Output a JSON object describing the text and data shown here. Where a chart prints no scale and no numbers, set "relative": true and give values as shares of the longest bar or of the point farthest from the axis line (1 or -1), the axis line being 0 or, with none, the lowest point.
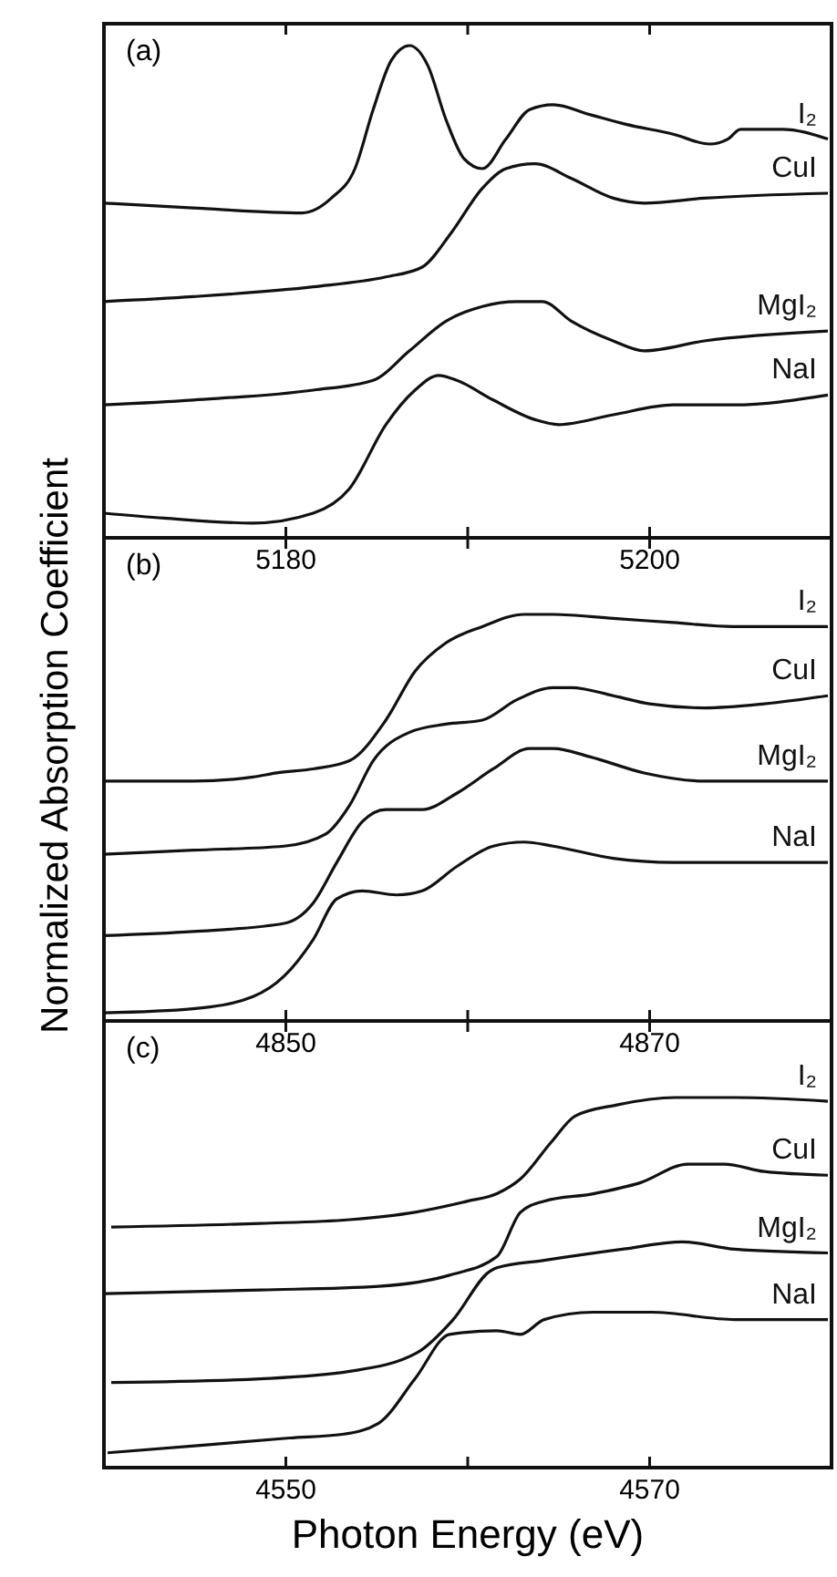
{
  "chart_data": [
    {
      "type": "line",
      "title": "(a)",
      "relative": true,
      "xlim": [
        5170,
        5210
      ],
      "xticks": [
        5180,
        {
          "value": 5190,
          "label": null
        },
        5200
      ],
      "legend": false,
      "marker": "none",
      "line_style": "solid",
      "series": [
        {
          "name": "I₂",
          "color": "#111111",
          "x": [
            5170.0,
            5174.9,
            5180.9,
            5182.5,
            5183.8,
            5184.8,
            5185.8,
            5186.8,
            5187.8,
            5188.8,
            5189.8,
            5190.8,
            5192.1,
            5193.4,
            5194.7,
            5196.7,
            5198.7,
            5201.3,
            5203.3,
            5204.3,
            5205.0,
            5207.3,
            5209.8
          ],
          "values": [
            0.68,
            0.67,
            0.66,
            0.69,
            0.75,
            0.87,
            0.97,
            1.0,
            0.96,
            0.85,
            0.77,
            0.75,
            0.81,
            0.87,
            0.88,
            0.86,
            0.84,
            0.82,
            0.8,
            0.81,
            0.83,
            0.83,
            0.81
          ]
        },
        {
          "name": "CuI",
          "color": "#111111",
          "x": [
            5170.0,
            5174.9,
            5181.5,
            5185.5,
            5187.5,
            5189.1,
            5190.8,
            5192.1,
            5193.7,
            5195.7,
            5198.0,
            5199.7,
            5203.0,
            5209.8
          ],
          "values": [
            0.48,
            0.49,
            0.51,
            0.53,
            0.55,
            0.62,
            0.71,
            0.75,
            0.76,
            0.73,
            0.69,
            0.68,
            0.69,
            0.7
          ]
        },
        {
          "name": "MgI₂",
          "color": "#111111",
          "x": [
            5170.0,
            5174.9,
            5181.5,
            5184.8,
            5186.8,
            5188.8,
            5190.8,
            5192.7,
            5194.1,
            5195.7,
            5198.0,
            5199.7,
            5203.0,
            5209.8
          ],
          "values": [
            0.27,
            0.28,
            0.3,
            0.32,
            0.38,
            0.44,
            0.47,
            0.48,
            0.48,
            0.44,
            0.4,
            0.38,
            0.4,
            0.42
          ]
        },
        {
          "name": "NaI",
          "color": "#111111",
          "x": [
            5170.0,
            5173.3,
            5178.2,
            5181.5,
            5183.5,
            5185.5,
            5187.1,
            5188.4,
            5189.4,
            5191.4,
            5193.7,
            5195.0,
            5198.0,
            5201.3,
            5204.6,
            5209.8
          ],
          "values": [
            0.05,
            0.04,
            0.03,
            0.05,
            0.1,
            0.23,
            0.3,
            0.33,
            0.32,
            0.28,
            0.24,
            0.23,
            0.25,
            0.27,
            0.27,
            0.29
          ]
        }
      ]
    },
    {
      "type": "line",
      "title": "(b)",
      "ylabel": "Normalized Absorption Coefficient",
      "relative": true,
      "xlim": [
        4840,
        4880
      ],
      "xticks": [
        4850,
        {
          "value": 4860,
          "label": null
        },
        4870
      ],
      "legend": false,
      "marker": "none",
      "line_style": "solid",
      "series": [
        {
          "name": "I₂",
          "color": "#111111",
          "x": [
            4840.0,
            4844.9,
            4848.2,
            4849.5,
            4851.5,
            4853.5,
            4855.5,
            4857.1,
            4858.8,
            4860.8,
            4863.1,
            4864.7,
            4868.0,
            4871.3,
            4874.6,
            4879.8
          ],
          "values": [
            0.59,
            0.59,
            0.6,
            0.61,
            0.62,
            0.64,
            0.74,
            0.86,
            0.93,
            0.97,
            1.0,
            1.0,
            0.99,
            0.98,
            0.97,
            0.97
          ]
        },
        {
          "name": "CuI",
          "color": "#111111",
          "x": [
            4840.0,
            4844.9,
            4849.9,
            4852.2,
            4853.5,
            4854.8,
            4856.8,
            4858.8,
            4860.8,
            4862.7,
            4864.7,
            4865.7,
            4868.0,
            4870.0,
            4873.0,
            4876.3,
            4879.8
          ],
          "values": [
            0.41,
            0.42,
            0.43,
            0.46,
            0.53,
            0.64,
            0.71,
            0.73,
            0.74,
            0.79,
            0.82,
            0.82,
            0.8,
            0.78,
            0.77,
            0.78,
            0.8
          ]
        },
        {
          "name": "MgI₂",
          "color": "#111111",
          "x": [
            4840.0,
            4844.9,
            4849.9,
            4851.5,
            4852.8,
            4854.2,
            4855.5,
            4857.5,
            4859.4,
            4861.4,
            4863.4,
            4864.7,
            4866.7,
            4869.7,
            4873.0,
            4879.8
          ],
          "values": [
            0.21,
            0.22,
            0.24,
            0.29,
            0.39,
            0.49,
            0.52,
            0.52,
            0.56,
            0.62,
            0.67,
            0.67,
            0.65,
            0.61,
            0.59,
            0.59
          ]
        },
        {
          "name": "NaI",
          "color": "#111111",
          "x": [
            4840.0,
            4844.9,
            4848.2,
            4849.9,
            4851.5,
            4852.8,
            4854.2,
            4856.1,
            4857.5,
            4859.4,
            4861.4,
            4863.1,
            4864.7,
            4868.0,
            4871.3,
            4879.8
          ],
          "values": [
            0.02,
            0.03,
            0.06,
            0.11,
            0.2,
            0.3,
            0.32,
            0.31,
            0.32,
            0.38,
            0.43,
            0.44,
            0.43,
            0.4,
            0.39,
            0.39
          ]
        }
      ]
    },
    {
      "type": "line",
      "title": "(c)",
      "xlabel": "Photon Energy (eV)",
      "relative": true,
      "xlim": [
        4540,
        4580
      ],
      "xticks": [
        4550,
        {
          "value": 4560,
          "label": null
        },
        4570
      ],
      "legend": false,
      "marker": "none",
      "line_style": "solid",
      "series": [
        {
          "name": "I₂",
          "color": "#111111",
          "x": [
            4540.4,
            4548.6,
            4553.5,
            4557.1,
            4560.0,
            4561.6,
            4562.9,
            4564.6,
            4565.9,
            4568.2,
            4571.4,
            4574.7,
            4579.8
          ],
          "values": [
            0.65,
            0.66,
            0.67,
            0.69,
            0.72,
            0.74,
            0.78,
            0.88,
            0.95,
            0.98,
            1.0,
            1.0,
            0.99
          ]
        },
        {
          "name": "CuI",
          "color": "#111111",
          "x": [
            4540.1,
            4548.6,
            4555.1,
            4559.0,
            4561.6,
            4562.9,
            4564.2,
            4566.9,
            4569.5,
            4572.1,
            4574.1,
            4576.3,
            4579.8
          ],
          "values": [
            0.47,
            0.48,
            0.49,
            0.52,
            0.57,
            0.69,
            0.72,
            0.74,
            0.77,
            0.82,
            0.82,
            0.8,
            0.79
          ]
        },
        {
          "name": "MgI₂",
          "color": "#111111",
          "x": [
            4540.4,
            4548.6,
            4553.5,
            4557.2,
            4559.2,
            4561.2,
            4561.6,
            4564.2,
            4568.5,
            4571.8,
            4574.7,
            4579.8
          ],
          "values": [
            0.23,
            0.24,
            0.26,
            0.31,
            0.4,
            0.53,
            0.54,
            0.56,
            0.59,
            0.61,
            0.59,
            0.58
          ]
        },
        {
          "name": "NaI",
          "color": "#111111",
          "x": [
            4540.2,
            4545.3,
            4550.2,
            4553.1,
            4555.1,
            4557.1,
            4559.0,
            4561.6,
            4562.9,
            4564.2,
            4566.9,
            4570.1,
            4574.7,
            4579.8
          ],
          "values": [
            0.04,
            0.06,
            0.08,
            0.09,
            0.12,
            0.24,
            0.36,
            0.37,
            0.36,
            0.4,
            0.42,
            0.42,
            0.4,
            0.4
          ]
        }
      ]
    }
  ]
}
